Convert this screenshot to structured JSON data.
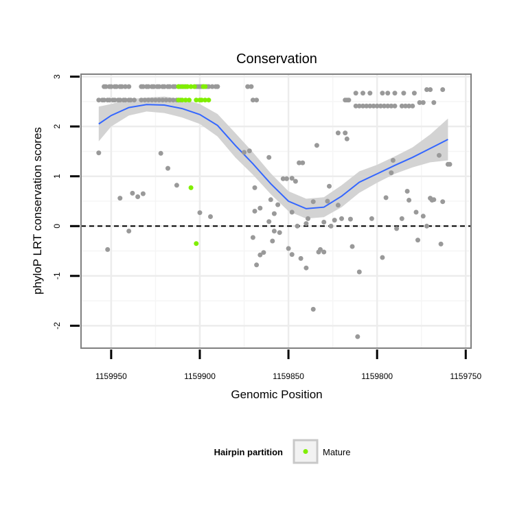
{
  "chart_data": {
    "type": "scatter",
    "title": "Conservation",
    "xlabel": "Genomic Position",
    "ylabel": "phyloP LRT conservation scores",
    "x_reversed": true,
    "xlim": [
      1159967,
      1159747
    ],
    "ylim": [
      -2.45,
      3.05
    ],
    "x_ticks": [
      1159950,
      1159900,
      1159850,
      1159800,
      1159750
    ],
    "x_tick_labels": [
      "1159950",
      "1159900",
      "1159850",
      "1159800",
      "1159750"
    ],
    "y_ticks": [
      -2,
      -1,
      0,
      1,
      2,
      3
    ],
    "y_tick_labels": [
      "-2",
      "-1",
      "0",
      "1",
      "2",
      "3"
    ],
    "grid": true,
    "reference_line": {
      "y": 0,
      "style": "dashed"
    },
    "legend": {
      "title": "Hairpin partition",
      "position": "bottom",
      "items": [
        {
          "label": "Mature",
          "color": "#80ee00"
        }
      ]
    },
    "colors": {
      "points": "#999999",
      "mature": "#80ee00",
      "smooth": "#3366ff",
      "band": "#d3d3d3",
      "panel_border": "#7f7f7f"
    },
    "series": [
      {
        "name": "Mature",
        "points": [
          [
            1159912,
            2.8
          ],
          [
            1159910,
            2.8
          ],
          [
            1159908,
            2.8
          ],
          [
            1159907,
            2.8
          ],
          [
            1159905,
            2.8
          ],
          [
            1159903,
            2.8
          ],
          [
            1159898,
            2.8
          ],
          [
            1159897,
            2.8
          ],
          [
            1159912,
            2.53
          ],
          [
            1159910,
            2.53
          ],
          [
            1159908,
            2.53
          ],
          [
            1159906,
            2.53
          ],
          [
            1159902,
            2.53
          ],
          [
            1159900,
            2.53
          ],
          [
            1159899,
            2.53
          ],
          [
            1159897,
            2.53
          ],
          [
            1159895,
            2.53
          ],
          [
            1159905,
            0.77
          ],
          [
            1159902,
            -0.35
          ]
        ]
      },
      {
        "name": "",
        "points": [
          [
            1159954,
            2.8
          ],
          [
            1159953,
            2.8
          ],
          [
            1159951,
            2.8
          ],
          [
            1159950,
            2.8
          ],
          [
            1159948,
            2.8
          ],
          [
            1159947,
            2.8
          ],
          [
            1159945,
            2.8
          ],
          [
            1159944,
            2.8
          ],
          [
            1159942,
            2.8
          ],
          [
            1159940,
            2.8
          ],
          [
            1159933,
            2.8
          ],
          [
            1159932,
            2.8
          ],
          [
            1159930,
            2.8
          ],
          [
            1159929,
            2.8
          ],
          [
            1159927,
            2.8
          ],
          [
            1159926,
            2.8
          ],
          [
            1159924,
            2.8
          ],
          [
            1159923,
            2.8
          ],
          [
            1159921,
            2.8
          ],
          [
            1159920,
            2.8
          ],
          [
            1159918,
            2.8
          ],
          [
            1159917,
            2.8
          ],
          [
            1159915,
            2.8
          ],
          [
            1159914,
            2.8
          ],
          [
            1159912,
            2.8
          ],
          [
            1159911,
            2.8
          ],
          [
            1159909,
            2.8
          ],
          [
            1159902,
            2.8
          ],
          [
            1159901,
            2.8
          ],
          [
            1159900,
            2.8
          ],
          [
            1159899,
            2.8
          ],
          [
            1159898,
            2.8
          ],
          [
            1159896,
            2.8
          ],
          [
            1159895,
            2.8
          ],
          [
            1159893,
            2.8
          ],
          [
            1159891,
            2.8
          ],
          [
            1159890,
            2.8
          ],
          [
            1159873,
            2.8
          ],
          [
            1159871,
            2.8
          ],
          [
            1159957,
            2.53
          ],
          [
            1159955,
            2.53
          ],
          [
            1159954,
            2.53
          ],
          [
            1159952,
            2.53
          ],
          [
            1159951,
            2.53
          ],
          [
            1159949,
            2.53
          ],
          [
            1159948,
            2.53
          ],
          [
            1159946,
            2.53
          ],
          [
            1159945,
            2.53
          ],
          [
            1159943,
            2.53
          ],
          [
            1159942,
            2.53
          ],
          [
            1159940,
            2.53
          ],
          [
            1159939,
            2.53
          ],
          [
            1159937,
            2.53
          ],
          [
            1159933,
            2.53
          ],
          [
            1159931,
            2.53
          ],
          [
            1159929,
            2.53
          ],
          [
            1159927,
            2.53
          ],
          [
            1159925,
            2.53
          ],
          [
            1159923,
            2.53
          ],
          [
            1159921,
            2.53
          ],
          [
            1159919,
            2.53
          ],
          [
            1159917,
            2.53
          ],
          [
            1159915,
            2.53
          ],
          [
            1159913,
            2.53
          ],
          [
            1159911,
            2.53
          ],
          [
            1159870,
            2.53
          ],
          [
            1159868,
            2.53
          ],
          [
            1159818,
            2.53
          ],
          [
            1159817,
            2.53
          ],
          [
            1159816,
            2.53
          ],
          [
            1159812,
            2.67
          ],
          [
            1159808,
            2.67
          ],
          [
            1159804,
            2.67
          ],
          [
            1159797,
            2.67
          ],
          [
            1159794,
            2.67
          ],
          [
            1159790,
            2.67
          ],
          [
            1159785,
            2.67
          ],
          [
            1159779,
            2.67
          ],
          [
            1159772,
            2.74
          ],
          [
            1159770,
            2.74
          ],
          [
            1159763,
            2.74
          ],
          [
            1159812,
            2.41
          ],
          [
            1159810,
            2.41
          ],
          [
            1159808,
            2.41
          ],
          [
            1159806,
            2.41
          ],
          [
            1159804,
            2.41
          ],
          [
            1159802,
            2.41
          ],
          [
            1159800,
            2.41
          ],
          [
            1159798,
            2.41
          ],
          [
            1159796,
            2.41
          ],
          [
            1159794,
            2.41
          ],
          [
            1159792,
            2.41
          ],
          [
            1159790,
            2.41
          ],
          [
            1159786,
            2.41
          ],
          [
            1159784,
            2.41
          ],
          [
            1159782,
            2.41
          ],
          [
            1159780,
            2.41
          ],
          [
            1159776,
            2.48
          ],
          [
            1159774,
            2.48
          ],
          [
            1159768,
            2.48
          ],
          [
            1159957,
            1.47
          ],
          [
            1159922,
            1.46
          ],
          [
            1159918,
            1.16
          ],
          [
            1159913,
            0.82
          ],
          [
            1159945,
            0.56
          ],
          [
            1159938,
            0.66
          ],
          [
            1159935,
            0.59
          ],
          [
            1159932,
            0.65
          ],
          [
            1159940,
            -0.1
          ],
          [
            1159952,
            -0.47
          ],
          [
            1159900,
            0.27
          ],
          [
            1159894,
            0.19
          ],
          [
            1159875,
            1.48
          ],
          [
            1159872,
            1.51
          ],
          [
            1159869,
            0.77
          ],
          [
            1159869,
            0.3
          ],
          [
            1159866,
            0.36
          ],
          [
            1159870,
            -0.23
          ],
          [
            1159868,
            -0.78
          ],
          [
            1159866,
            -0.58
          ],
          [
            1159864,
            -0.53
          ],
          [
            1159861,
            1.38
          ],
          [
            1159860,
            0.53
          ],
          [
            1159858,
            0.25
          ],
          [
            1159858,
            -0.1
          ],
          [
            1159861,
            0.09
          ],
          [
            1159856,
            0.43
          ],
          [
            1159859,
            -0.3
          ],
          [
            1159855,
            -0.13
          ],
          [
            1159853,
            0.95
          ],
          [
            1159851,
            0.95
          ],
          [
            1159848,
            0.96
          ],
          [
            1159846,
            0.9
          ],
          [
            1159850,
            -0.45
          ],
          [
            1159848,
            -0.57
          ],
          [
            1159843,
            -0.65
          ],
          [
            1159848,
            0.28
          ],
          [
            1159845,
            0.0
          ],
          [
            1159844,
            1.27
          ],
          [
            1159842,
            1.27
          ],
          [
            1159840,
            0.05
          ],
          [
            1159840,
            -0.84
          ],
          [
            1159839,
            0.15
          ],
          [
            1159836,
            0.49
          ],
          [
            1159833,
            -0.52
          ],
          [
            1159832,
            -0.47
          ],
          [
            1159830,
            -0.52
          ],
          [
            1159830,
            0.08
          ],
          [
            1159828,
            0.5
          ],
          [
            1159827,
            0.8
          ],
          [
            1159826,
            0.0
          ],
          [
            1159824,
            0.12
          ],
          [
            1159822,
            0.42
          ],
          [
            1159836,
            -1.67
          ],
          [
            1159834,
            1.62
          ],
          [
            1159822,
            1.87
          ],
          [
            1159818,
            1.87
          ],
          [
            1159817,
            1.75
          ],
          [
            1159820,
            0.15
          ],
          [
            1159815,
            0.14
          ],
          [
            1159814,
            -0.41
          ],
          [
            1159810,
            -0.92
          ],
          [
            1159811,
            -2.22
          ],
          [
            1159803,
            0.15
          ],
          [
            1159797,
            -0.63
          ],
          [
            1159795,
            0.57
          ],
          [
            1159792,
            1.07
          ],
          [
            1159791,
            1.32
          ],
          [
            1159789,
            -0.05
          ],
          [
            1159786,
            0.15
          ],
          [
            1159783,
            0.7
          ],
          [
            1159782,
            0.52
          ],
          [
            1159778,
            0.28
          ],
          [
            1159777,
            -0.28
          ],
          [
            1159774,
            0.2
          ],
          [
            1159772,
            0.0
          ],
          [
            1159770,
            0.56
          ],
          [
            1159769,
            0.52
          ],
          [
            1159768,
            0.53
          ],
          [
            1159765,
            1.42
          ],
          [
            1159764,
            -0.36
          ],
          [
            1159763,
            0.49
          ],
          [
            1159760,
            1.24
          ],
          [
            1159759,
            1.24
          ]
        ]
      }
    ],
    "smooth": {
      "x": [
        1159957,
        1159950,
        1159940,
        1159930,
        1159920,
        1159910,
        1159900,
        1159890,
        1159880,
        1159870,
        1159860,
        1159850,
        1159840,
        1159830,
        1159820,
        1159810,
        1159800,
        1159790,
        1159780,
        1159770,
        1159760
      ],
      "y": [
        2.05,
        2.22,
        2.38,
        2.44,
        2.43,
        2.36,
        2.24,
        2.02,
        1.62,
        1.25,
        0.85,
        0.5,
        0.35,
        0.38,
        0.6,
        0.88,
        1.05,
        1.22,
        1.38,
        1.56,
        1.74
      ],
      "lower": [
        1.7,
        2.0,
        2.22,
        2.3,
        2.27,
        2.18,
        2.05,
        1.8,
        1.38,
        1.03,
        0.64,
        0.3,
        0.15,
        0.18,
        0.38,
        0.67,
        0.87,
        1.05,
        1.18,
        1.28,
        1.32
      ],
      "upper": [
        2.4,
        2.45,
        2.55,
        2.58,
        2.6,
        2.55,
        2.45,
        2.25,
        1.87,
        1.48,
        1.06,
        0.7,
        0.55,
        0.58,
        0.82,
        1.1,
        1.23,
        1.4,
        1.58,
        1.84,
        2.16
      ]
    }
  }
}
